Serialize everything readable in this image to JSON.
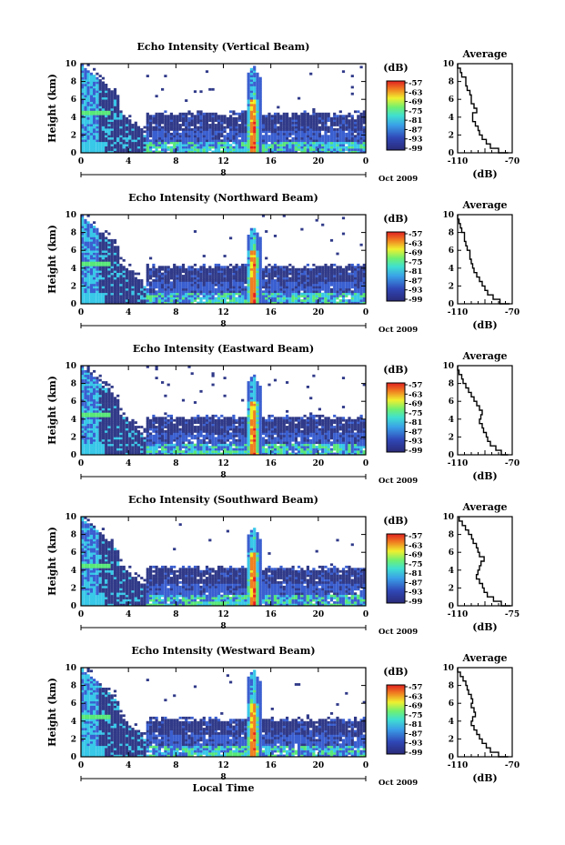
{
  "chart_data": [
    {
      "type": "heatmap",
      "title": "Echo Intensity (Vertical Beam)",
      "ylabel": "Height (km)",
      "xlim": [
        0,
        24
      ],
      "ylim": [
        0,
        10
      ],
      "xticks": [
        "0",
        "4",
        "8",
        "12",
        "16",
        "20",
        "0"
      ],
      "yticks": [
        "0",
        "2",
        "4",
        "6",
        "8",
        "10"
      ],
      "date_label": "8",
      "date_suffix": "Oct 2009",
      "colorbar": {
        "unit": "(dB)",
        "ticks": [
          "-57",
          "-63",
          "-69",
          "-75",
          "-81",
          "-87",
          "-93",
          "-99"
        ]
      },
      "features": {
        "storm_start": 13.8,
        "storm_end": 15.0,
        "storm_top": 9.8,
        "layer_top": 4.2,
        "left_plume_top": 9.8
      },
      "profile": {
        "title": "Average",
        "xlabel": "(dB)",
        "xticks": [
          "-110",
          "-70"
        ],
        "yticks": [
          "0",
          "2",
          "4",
          "6",
          "8",
          "10"
        ],
        "xlim": [
          -110,
          -70
        ],
        "heights": [
          0,
          0.5,
          1,
          1.5,
          2,
          2.5,
          3,
          3.5,
          4,
          4.5,
          5,
          5.5,
          6,
          6.5,
          7,
          7.5,
          8,
          8.5,
          9,
          9.5,
          10
        ],
        "values": [
          -73,
          -80,
          -86,
          -89,
          -92,
          -94,
          -95,
          -97,
          -99,
          -99,
          -96,
          -98,
          -100,
          -100,
          -101,
          -103,
          -104,
          -104,
          -107,
          -108,
          -110
        ]
      }
    },
    {
      "type": "heatmap",
      "title": "Echo Intensity (Northward Beam)",
      "ylabel": "Height (km)",
      "xlim": [
        0,
        24
      ],
      "ylim": [
        0,
        10
      ],
      "xticks": [
        "0",
        "4",
        "8",
        "12",
        "16",
        "20",
        "0"
      ],
      "yticks": [
        "0",
        "2",
        "4",
        "6",
        "8",
        "10"
      ],
      "date_label": "8",
      "date_suffix": "Oct 2009",
      "colorbar": {
        "unit": "(dB)",
        "ticks": [
          "-57",
          "-63",
          "-69",
          "-75",
          "-81",
          "-87",
          "-93",
          "-99"
        ]
      },
      "features": {
        "storm_start": 13.8,
        "storm_end": 15.0,
        "storm_top": 8.6,
        "layer_top": 4.0,
        "left_plume_top": 9.8
      },
      "profile": {
        "title": "Average",
        "xlabel": "(dB)",
        "xticks": [
          "-110",
          "-70"
        ],
        "yticks": [
          "0",
          "2",
          "4",
          "6",
          "8",
          "10"
        ],
        "xlim": [
          -110,
          -70
        ],
        "heights": [
          0,
          0.5,
          1,
          1.5,
          2,
          2.5,
          3,
          3.5,
          4,
          4.5,
          5,
          5.5,
          6,
          6.5,
          7,
          7.5,
          8,
          8.5,
          9,
          9.5,
          10
        ],
        "values": [
          -72,
          -79,
          -84,
          -88,
          -90,
          -92,
          -94,
          -96,
          -98,
          -99,
          -100,
          -101,
          -101,
          -103,
          -104,
          -105,
          -105,
          -107,
          -108,
          -109,
          -110
        ]
      }
    },
    {
      "type": "heatmap",
      "title": "Echo Intensity (Eastward Beam)",
      "ylabel": "Height (km)",
      "xlim": [
        0,
        24
      ],
      "ylim": [
        0,
        10
      ],
      "xticks": [
        "0",
        "4",
        "8",
        "12",
        "16",
        "20",
        "0"
      ],
      "yticks": [
        "0",
        "2",
        "4",
        "6",
        "8",
        "10"
      ],
      "date_label": "8",
      "date_suffix": "Oct 2009",
      "colorbar": {
        "unit": "(dB)",
        "ticks": [
          "-57",
          "-63",
          "-69",
          "-75",
          "-81",
          "-87",
          "-93",
          "-99"
        ]
      },
      "features": {
        "storm_start": 13.8,
        "storm_end": 15.0,
        "storm_top": 9.0,
        "layer_top": 4.0,
        "left_plume_top": 9.8
      },
      "profile": {
        "title": "Average",
        "xlabel": "(dB)",
        "xticks": [
          "-110",
          "-70"
        ],
        "yticks": [
          "0",
          "2",
          "4",
          "6",
          "8",
          "10"
        ],
        "xlim": [
          -110,
          -70
        ],
        "heights": [
          0,
          0.5,
          1,
          1.5,
          2,
          2.5,
          3,
          3.5,
          4,
          4.5,
          5,
          5.5,
          6,
          6.5,
          7,
          7.5,
          8,
          8.5,
          9,
          9.5,
          10
        ],
        "values": [
          -73,
          -78,
          -82,
          -86,
          -88,
          -89,
          -91,
          -92,
          -94,
          -93,
          -92,
          -94,
          -96,
          -98,
          -100,
          -102,
          -104,
          -106,
          -107,
          -109,
          -110
        ]
      }
    },
    {
      "type": "heatmap",
      "title": "Echo Intensity (Southward Beam)",
      "ylabel": "Height (km)",
      "xlim": [
        0,
        24
      ],
      "ylim": [
        0,
        10
      ],
      "xticks": [
        "0",
        "4",
        "8",
        "12",
        "16",
        "20",
        "0"
      ],
      "yticks": [
        "0",
        "2",
        "4",
        "6",
        "8",
        "10"
      ],
      "date_label": "8",
      "date_suffix": "Oct 2009",
      "colorbar": {
        "unit": "(dB)",
        "ticks": [
          "-57",
          "-63",
          "-69",
          "-75",
          "-81",
          "-87",
          "-93",
          "-99"
        ]
      },
      "features": {
        "storm_start": 13.8,
        "storm_end": 15.0,
        "storm_top": 8.8,
        "layer_top": 4.0,
        "left_plume_top": 9.8
      },
      "profile": {
        "title": "Average",
        "xlabel": "(dB)",
        "xticks": [
          "-110",
          "-75"
        ],
        "yticks": [
          "0",
          "2",
          "4",
          "6",
          "8",
          "10"
        ],
        "xlim": [
          -110,
          -75
        ],
        "heights": [
          0,
          0.5,
          1,
          1.5,
          2,
          2.5,
          3,
          3.5,
          4,
          4.5,
          5,
          5.5,
          6,
          6.5,
          7,
          7.5,
          8,
          8.5,
          9,
          9.5,
          10
        ],
        "values": [
          -76,
          -82,
          -87,
          -91,
          -93,
          -94,
          -96,
          -98,
          -97,
          -96,
          -95,
          -93,
          -96,
          -97,
          -98,
          -100,
          -101,
          -103,
          -105,
          -107,
          -109
        ]
      }
    },
    {
      "type": "heatmap",
      "title": "Echo Intensity (Westward Beam)",
      "ylabel": "Height (km)",
      "xlabel": "Local Time",
      "xlim": [
        0,
        24
      ],
      "ylim": [
        0,
        10
      ],
      "xticks": [
        "0",
        "4",
        "8",
        "12",
        "16",
        "20",
        "0"
      ],
      "yticks": [
        "0",
        "2",
        "4",
        "6",
        "8",
        "10"
      ],
      "date_label": "8",
      "date_suffix": "Oct 2009",
      "colorbar": {
        "unit": "(dB)",
        "ticks": [
          "-57",
          "-63",
          "-69",
          "-75",
          "-81",
          "-87",
          "-93",
          "-99"
        ]
      },
      "features": {
        "storm_start": 13.8,
        "storm_end": 15.0,
        "storm_top": 9.8,
        "layer_top": 4.0,
        "left_plume_top": 9.8
      },
      "profile": {
        "title": "Average",
        "xlabel": "(dB)",
        "xticks": [
          "-110",
          "-70"
        ],
        "yticks": [
          "0",
          "2",
          "4",
          "6",
          "8",
          "10"
        ],
        "xlim": [
          -110,
          -70
        ],
        "heights": [
          0,
          0.5,
          1,
          1.5,
          2,
          2.5,
          3,
          3.5,
          4,
          4.5,
          5,
          5.5,
          6,
          6.5,
          7,
          7.5,
          8,
          8.5,
          9,
          9.5,
          10
        ],
        "values": [
          -73,
          -80,
          -86,
          -89,
          -92,
          -94,
          -96,
          -98,
          -100,
          -99,
          -97,
          -98,
          -100,
          -99,
          -100,
          -102,
          -103,
          -104,
          -106,
          -108,
          -110
        ]
      }
    }
  ],
  "colors": {
    "dark": "#303a88",
    "blue": "#3a5fd0",
    "cyan": "#38c8e8",
    "green": "#58e878",
    "yellow": "#f0f020",
    "orange": "#f08020",
    "red": "#e82020"
  }
}
